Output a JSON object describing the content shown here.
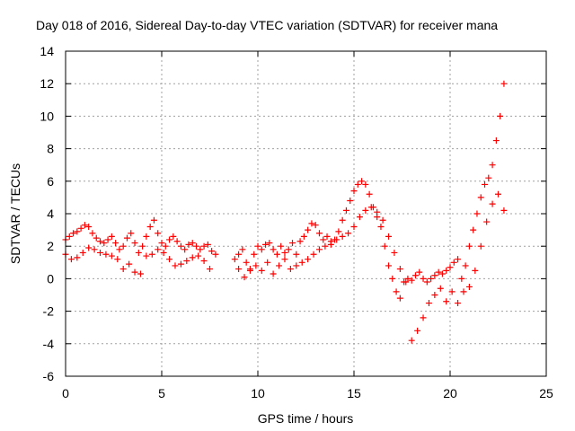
{
  "chart_data": {
    "type": "scatter",
    "title": "Day 018 of 2016, Sidereal Day-to-day VTEC variation (SDTVAR) for receiver mana",
    "xlabel": "GPS time / hours",
    "ylabel": "SDTVAR / TECUs",
    "xlim": [
      0,
      25
    ],
    "ylim": [
      -6,
      14
    ],
    "xticks": [
      "0",
      "5",
      "10",
      "15",
      "20",
      "25"
    ],
    "yticks": [
      "-6",
      "-4",
      "-2",
      "0",
      "2",
      "4",
      "6",
      "8",
      "10",
      "12",
      "14"
    ],
    "grid": true,
    "marker": "+",
    "series": [
      {
        "name": "SDTVAR",
        "color": "#ff0000",
        "x": [
          0.0,
          0.2,
          0.4,
          0.6,
          0.8,
          1.0,
          1.2,
          1.4,
          1.6,
          1.8,
          2.0,
          2.2,
          2.4,
          2.6,
          2.8,
          3.0,
          3.2,
          3.4,
          3.6,
          3.8,
          4.0,
          4.2,
          4.4,
          4.6,
          4.8,
          5.0,
          5.2,
          5.4,
          5.6,
          5.8,
          6.0,
          6.2,
          6.4,
          6.6,
          6.8,
          7.0,
          7.2,
          7.4,
          7.6,
          7.8,
          8.8,
          9.0,
          9.2,
          9.4,
          9.6,
          9.8,
          10.0,
          10.2,
          10.4,
          10.6,
          10.8,
          11.0,
          11.2,
          11.4,
          11.6,
          11.8,
          12.0,
          12.2,
          12.4,
          12.6,
          12.8,
          13.0,
          13.2,
          13.4,
          13.6,
          13.8,
          14.0,
          14.2,
          14.4,
          14.6,
          14.8,
          15.0,
          15.2,
          15.4,
          15.6,
          15.8,
          16.0,
          16.2,
          16.4,
          16.6,
          16.8,
          17.0,
          17.2,
          17.4,
          17.6,
          17.8,
          18.0,
          18.2,
          18.4,
          18.6,
          18.8,
          19.0,
          19.2,
          19.4,
          19.6,
          19.8,
          20.0,
          20.2,
          20.4,
          20.6,
          20.8,
          21.0,
          21.2,
          21.4,
          21.6,
          21.8,
          22.0,
          22.2,
          22.4,
          22.6,
          22.8,
          0.0,
          0.3,
          0.6,
          0.9,
          1.2,
          1.5,
          1.8,
          2.1,
          2.4,
          2.7,
          3.0,
          3.3,
          3.6,
          3.9,
          4.2,
          4.5,
          4.8,
          5.1,
          5.4,
          5.7,
          6.0,
          6.3,
          6.6,
          6.9,
          7.2,
          7.5,
          9.0,
          9.3,
          9.6,
          9.9,
          10.2,
          10.5,
          10.8,
          11.1,
          11.4,
          11.7,
          12.0,
          12.3,
          12.6,
          12.9,
          13.2,
          13.5,
          13.8,
          14.1,
          14.4,
          14.7,
          15.0,
          15.3,
          15.6,
          15.9,
          16.2,
          16.5,
          16.8,
          17.1,
          17.4,
          17.7,
          18.0,
          18.3,
          18.6,
          18.9,
          19.2,
          19.5,
          19.8,
          20.1,
          20.4,
          20.7,
          21.0,
          21.3,
          21.6,
          21.9,
          22.2,
          22.5,
          22.8
        ],
        "y": [
          2.4,
          2.6,
          2.8,
          2.9,
          3.1,
          3.3,
          3.2,
          2.8,
          2.5,
          2.3,
          2.2,
          2.4,
          2.6,
          2.2,
          1.8,
          2.0,
          2.5,
          2.8,
          2.2,
          1.6,
          2.0,
          2.6,
          3.2,
          3.6,
          2.8,
          2.2,
          2.0,
          2.4,
          2.6,
          2.3,
          2.0,
          1.8,
          2.1,
          2.2,
          2.0,
          1.8,
          2.0,
          2.1,
          1.7,
          1.5,
          1.2,
          1.5,
          1.8,
          1.0,
          0.6,
          1.5,
          2.0,
          1.8,
          2.1,
          2.2,
          1.8,
          1.5,
          2.0,
          1.6,
          1.8,
          2.2,
          1.5,
          2.3,
          2.6,
          3.0,
          3.4,
          3.3,
          2.8,
          2.4,
          2.6,
          2.3,
          2.4,
          2.9,
          3.6,
          4.2,
          4.8,
          5.4,
          5.8,
          6.0,
          5.8,
          5.2,
          4.4,
          3.8,
          3.2,
          2.0,
          0.8,
          0.0,
          -0.8,
          -1.2,
          -0.2,
          0.0,
          -0.1,
          0.2,
          0.4,
          0.0,
          -0.2,
          0.0,
          0.2,
          0.4,
          0.3,
          0.5,
          0.7,
          1.0,
          1.2,
          0.0,
          0.8,
          2.0,
          3.0,
          4.0,
          5.0,
          5.8,
          6.2,
          7.0,
          8.5,
          10.0,
          12.0,
          1.5,
          1.2,
          1.3,
          1.6,
          1.9,
          1.8,
          1.6,
          1.5,
          1.4,
          1.2,
          0.6,
          0.9,
          0.4,
          0.3,
          1.4,
          1.5,
          1.8,
          1.6,
          1.2,
          0.8,
          0.9,
          1.1,
          1.3,
          1.4,
          1.1,
          0.6,
          0.6,
          0.1,
          0.5,
          0.8,
          0.5,
          1.0,
          0.3,
          0.8,
          1.2,
          0.6,
          0.8,
          1.0,
          1.2,
          1.5,
          1.8,
          2.0,
          2.1,
          2.4,
          2.6,
          2.8,
          3.2,
          3.8,
          4.2,
          4.4,
          4.1,
          3.6,
          2.6,
          1.6,
          0.6,
          -0.2,
          -3.8,
          -3.2,
          -2.4,
          -1.5,
          -1.0,
          -0.6,
          -1.4,
          -0.8,
          -1.5,
          -0.8,
          -0.5,
          0.5,
          2.0,
          3.5,
          4.6,
          5.2,
          4.2
        ]
      }
    ]
  }
}
